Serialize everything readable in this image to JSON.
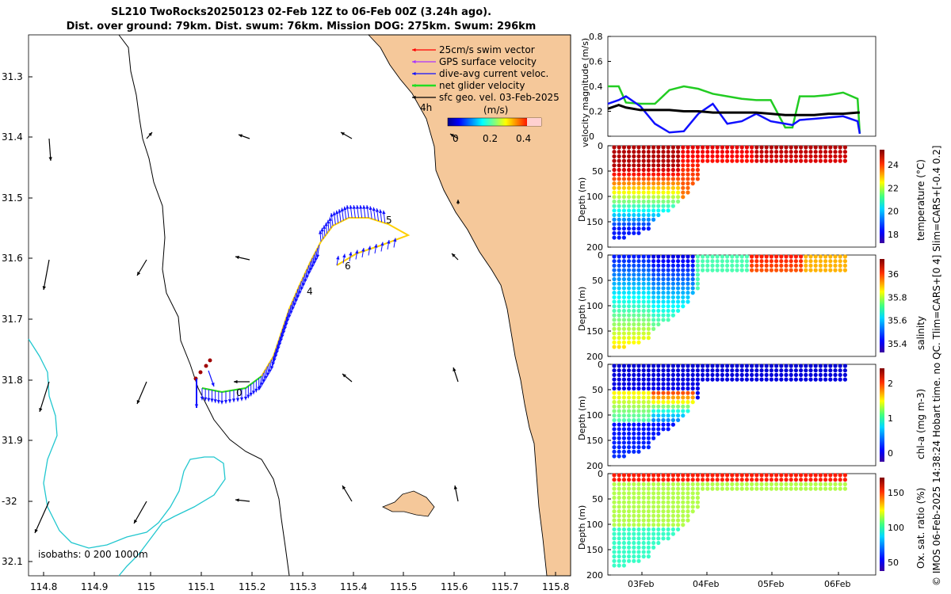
{
  "header": {
    "title_line1": "SL210 TwoRocks20250123 02-Feb 12Z to 06-Feb 00Z (3.24h ago).",
    "title_line2": "Dist. over ground: 79km. Dist. swum: 76km. Mission DOG: 275km. Swum: 296km"
  },
  "map": {
    "lon_ticks": [
      "114.8",
      "114.9",
      "115",
      "115.1",
      "115.2",
      "115.3",
      "115.4",
      "115.5",
      "115.6",
      "115.7",
      "115.8"
    ],
    "lat_ticks": [
      "31.3",
      "31.4",
      "31.5",
      "31.6",
      "31.7",
      "31.8",
      "31.9",
      "-32",
      "32.1"
    ],
    "isobaths_label": "isobaths: 0   200  1000m",
    "day_labels": [
      "4h",
      "5",
      "6",
      "4",
      "0"
    ],
    "legend": [
      {
        "label": "25cm/s swim vector",
        "color": "#ff0000"
      },
      {
        "label": "GPS surface velocity",
        "color": "#aa33ff"
      },
      {
        "label": "dive-avg current veloc.",
        "color": "#1010ff"
      },
      {
        "label": "net glider velocity",
        "color": "#22dd22"
      },
      {
        "label": "sfc geo. vel. 03-Feb-2025",
        "color": "#000000"
      }
    ],
    "colorbar": {
      "label": "(m/s)",
      "ticks": [
        "0",
        "0.2",
        "0.4"
      ]
    },
    "colors": {
      "land": "#f5c89a",
      "isobath200": "#000000",
      "isobath1000": "#22c7cf"
    }
  },
  "chart_data": [
    {
      "type": "line",
      "title": "",
      "ylabel": "velocity magnitude (m/s)",
      "ylim": [
        0,
        0.8
      ],
      "yticks": [
        "0",
        "0.2",
        "0.4",
        "0.6",
        "0.8"
      ],
      "xlim": [
        2.55,
        6.25
      ],
      "x": [
        2.55,
        2.7,
        2.8,
        3.0,
        3.2,
        3.4,
        3.6,
        3.8,
        4.0,
        4.2,
        4.4,
        4.6,
        4.8,
        5.0,
        5.1,
        5.2,
        5.4,
        5.6,
        5.8,
        6.0,
        6.03
      ],
      "series": [
        {
          "name": "net glider velocity",
          "color": "#22cc22",
          "values": [
            0.4,
            0.4,
            0.27,
            0.26,
            0.26,
            0.37,
            0.4,
            0.38,
            0.34,
            0.32,
            0.3,
            0.29,
            0.29,
            0.07,
            0.07,
            0.32,
            0.32,
            0.33,
            0.35,
            0.3,
            0.02
          ]
        },
        {
          "name": "dive-avg current",
          "color": "#1010ff",
          "values": [
            0.26,
            0.29,
            0.32,
            0.24,
            0.1,
            0.03,
            0.04,
            0.18,
            0.26,
            0.1,
            0.12,
            0.18,
            0.12,
            0.1,
            0.09,
            0.13,
            0.14,
            0.15,
            0.16,
            0.12,
            0.02
          ]
        },
        {
          "name": "sfc geo. vel.",
          "color": "#000000",
          "values": [
            0.22,
            0.25,
            0.23,
            0.21,
            0.21,
            0.21,
            0.2,
            0.2,
            0.19,
            0.19,
            0.19,
            0.19,
            0.18,
            0.17,
            0.17,
            0.17,
            0.17,
            0.18,
            0.18,
            0.19,
            0.19
          ]
        }
      ]
    },
    {
      "type": "scatter",
      "variable": "temperature",
      "ylabel": "Depth (m)",
      "cbar_label": "temperature (°C)",
      "cbar_ticks": [
        "24",
        "22",
        "20",
        "18"
      ],
      "yticks": [
        "0",
        "50",
        "100",
        "150",
        "200"
      ]
    },
    {
      "type": "scatter",
      "variable": "salinity",
      "ylabel": "Depth (m)",
      "cbar_label": "salinity",
      "cbar_ticks": [
        "36",
        "35.8",
        "35.6",
        "35.4"
      ],
      "yticks": [
        "0",
        "50",
        "100",
        "150",
        "200"
      ]
    },
    {
      "type": "scatter",
      "variable": "chl-a",
      "ylabel": "Depth (m)",
      "cbar_label": "chl-a (mg m-3)",
      "cbar_ticks": [
        "2",
        "1",
        "0"
      ],
      "yticks": [
        "0",
        "50",
        "100",
        "150",
        "200"
      ]
    },
    {
      "type": "scatter",
      "variable": "oxygen",
      "ylabel": "Depth (m)",
      "cbar_label": "Ox. sat. ratio (%)",
      "cbar_ticks": [
        "150",
        "100",
        "50"
      ],
      "yticks": [
        "0",
        "50",
        "100",
        "150",
        "200"
      ],
      "xticks": [
        "03Feb",
        "04Feb",
        "05Feb",
        "06Feb"
      ]
    }
  ],
  "footer": {
    "side_note": "© IMOS 06-Feb-2025 14:38:24 Hobart time. no QC. Tlim=CARS+[0 4] Slim=CARS+[-0.4 0.2]"
  }
}
